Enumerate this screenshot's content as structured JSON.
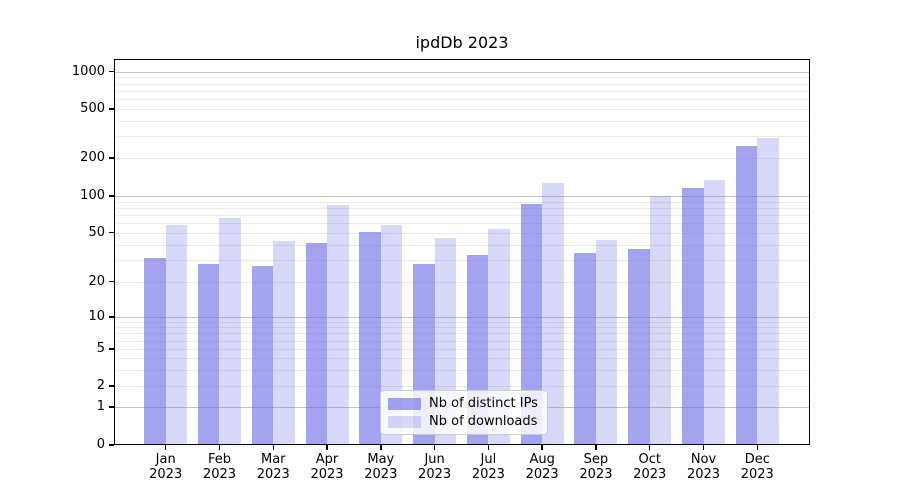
{
  "title": "ipdDb 2023",
  "chart_data": {
    "type": "bar",
    "title": "ipdDb 2023",
    "categories": [
      "Jan",
      "Feb",
      "Mar",
      "Apr",
      "May",
      "Jun",
      "Jul",
      "Aug",
      "Sep",
      "Oct",
      "Nov",
      "Dec"
    ],
    "category_year": "2023",
    "series": [
      {
        "name": "Nb of distinct IPs",
        "color": "rgba(110,110,230,0.63)",
        "values": [
          31,
          28,
          27,
          41,
          51,
          28,
          33,
          86,
          34,
          37,
          115,
          250
        ]
      },
      {
        "name": "Nb of downloads",
        "color": "rgba(110,110,230,0.27)",
        "values": [
          58,
          66,
          43,
          85,
          58,
          45,
          54,
          127,
          44,
          100,
          135,
          290
        ]
      }
    ],
    "yscale": "symlog",
    "ytick_values": [
      1000,
      500,
      200,
      100,
      50,
      20,
      10,
      5,
      2,
      1,
      0
    ],
    "ytick_labels": [
      "1000",
      "500",
      "200",
      "100",
      "50",
      "20",
      "10",
      "5",
      "2",
      "1",
      "0"
    ],
    "ylim": [
      0,
      1300
    ],
    "xlabel": "",
    "ylabel": "",
    "grid": true,
    "legend_position": "lower center",
    "colors": {
      "bar_base": "#6e6ee6",
      "grid_major": "#c4c4c4",
      "grid_minor": "#eaeaea",
      "spine": "#000000",
      "background": "#ffffff"
    }
  }
}
